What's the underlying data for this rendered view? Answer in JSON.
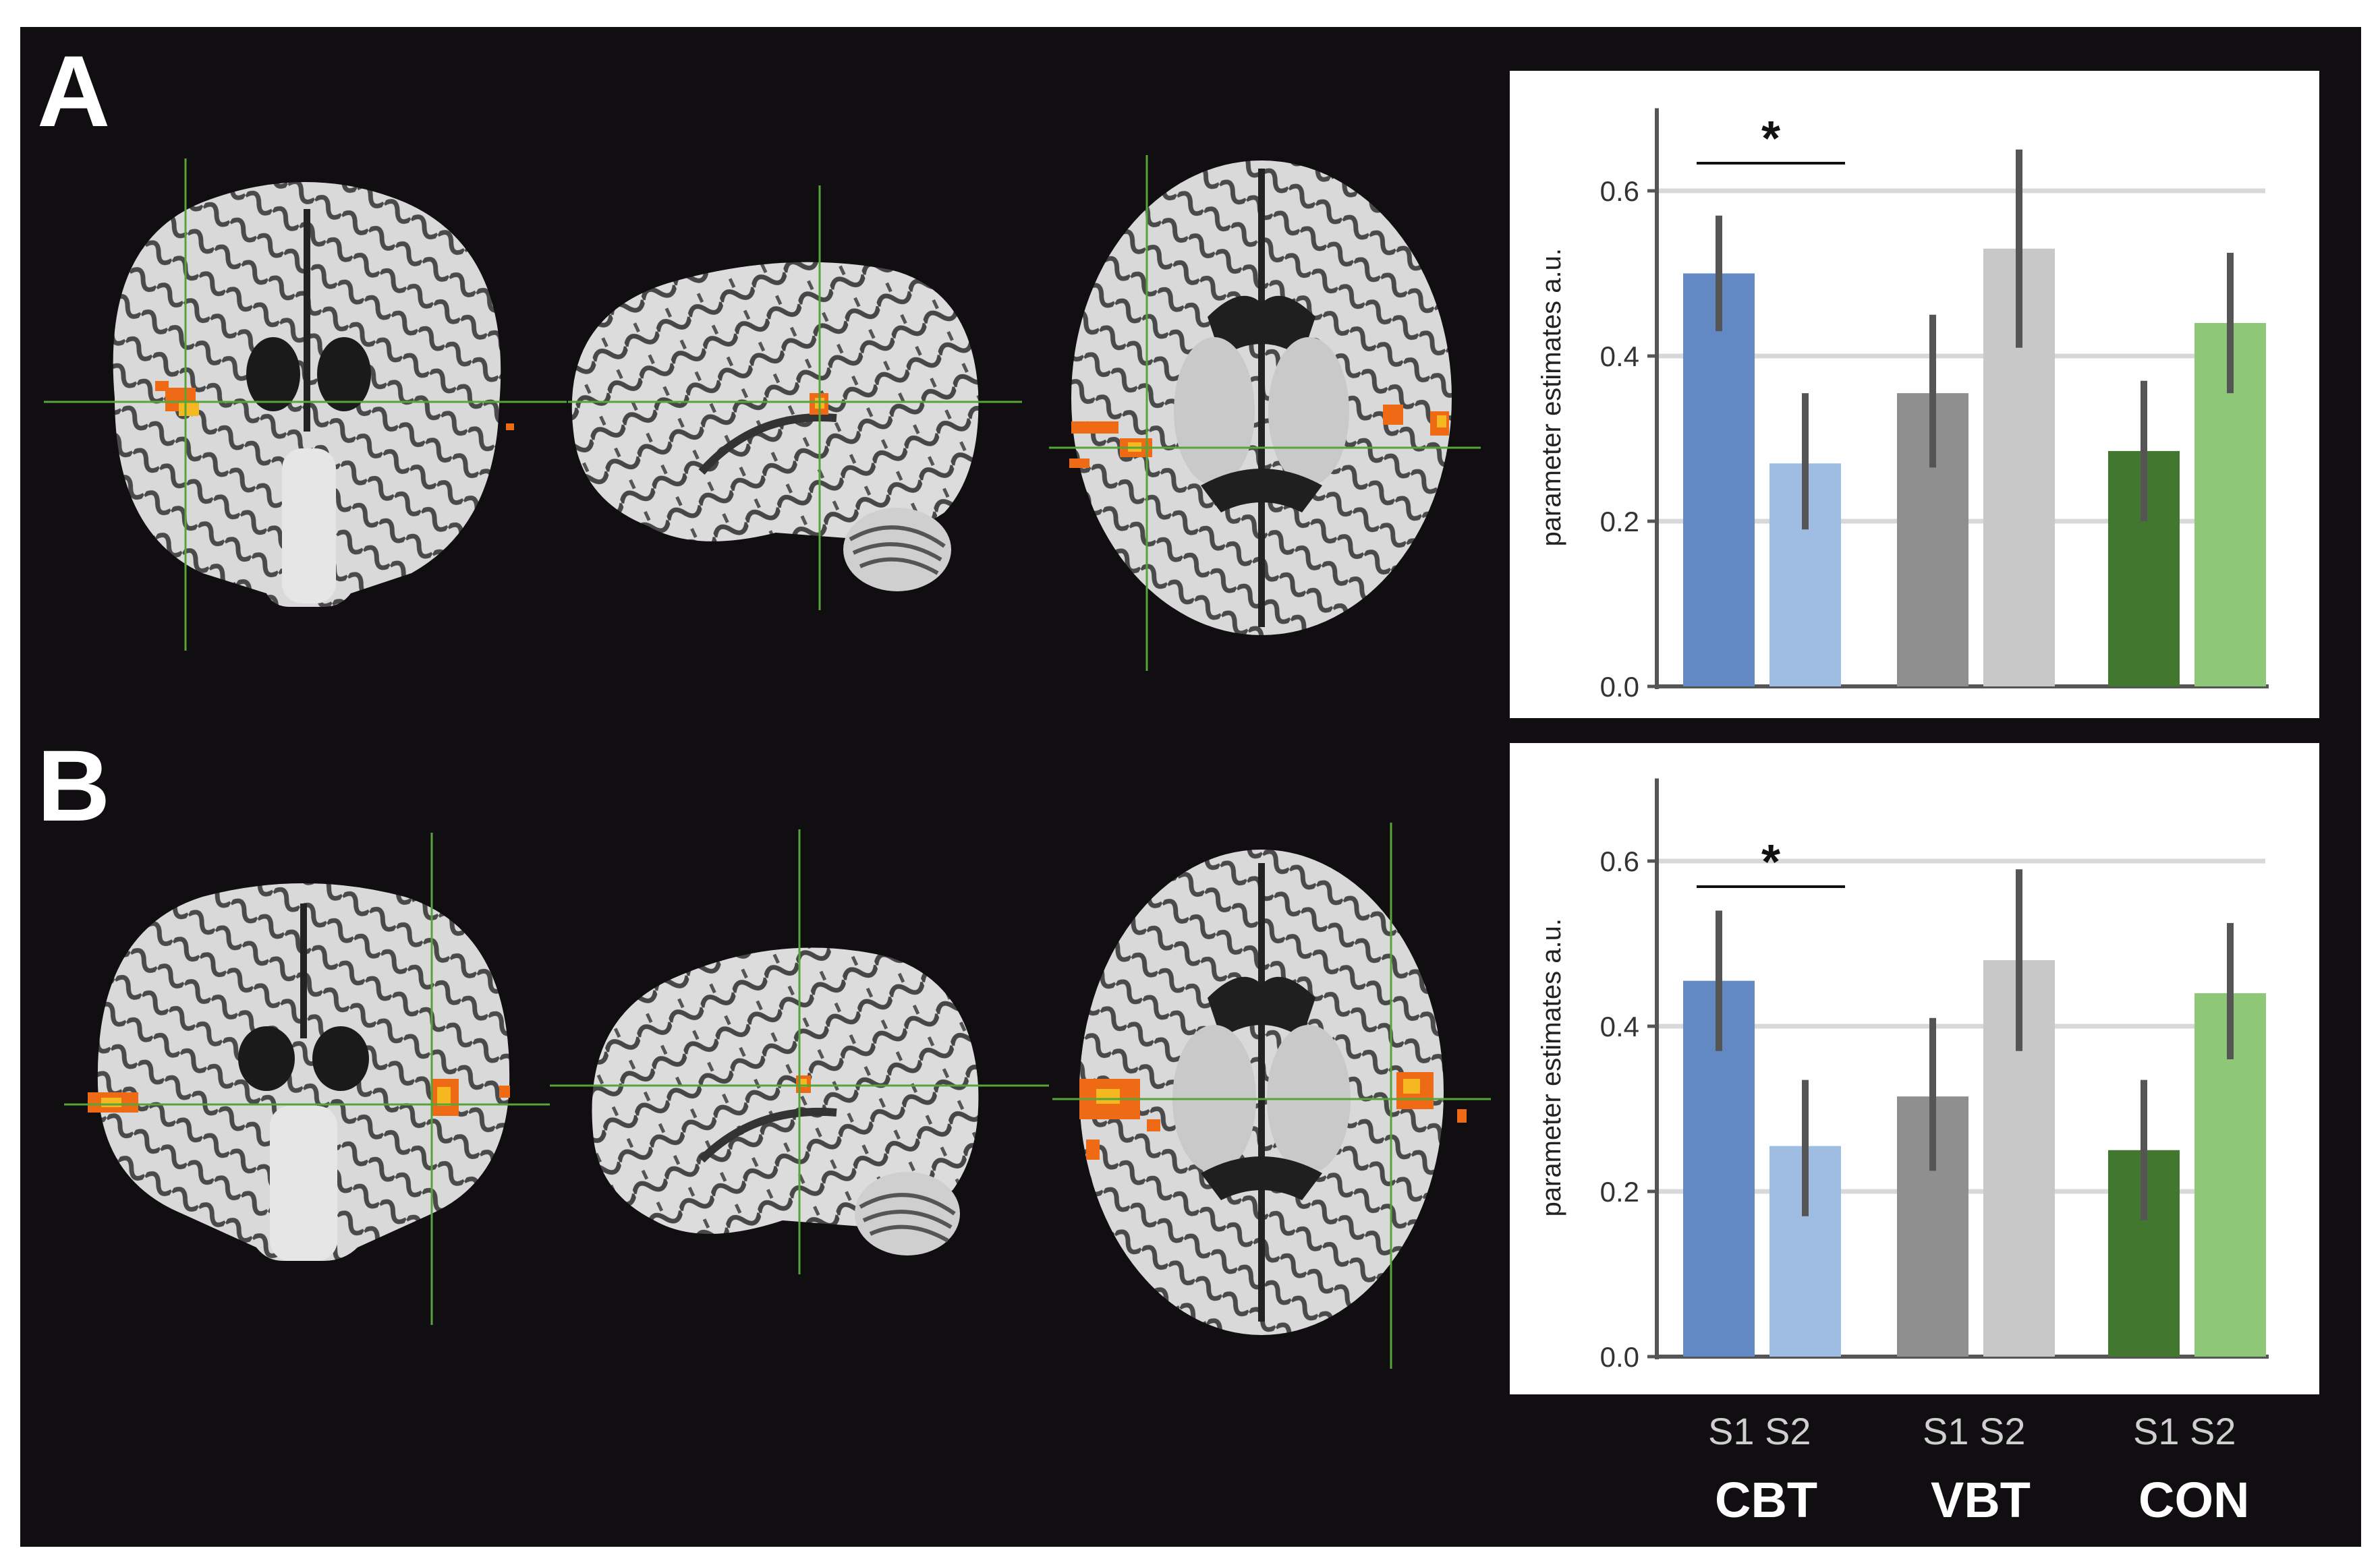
{
  "panels": [
    {
      "letter": "A"
    },
    {
      "letter": "B"
    }
  ],
  "session_labels": [
    "S1 S2",
    "S1 S2",
    "S1 S2"
  ],
  "groups": [
    "CBT",
    "VBT",
    "CON"
  ],
  "colors": {
    "background": "#100e10",
    "activation": "#ee6a14",
    "activation_peak": "#f6b820",
    "crosshair": "#56a43a",
    "cbt_s1": "#6289c4",
    "cbt_s2": "#9fbde3",
    "vbt_s1": "#8f8f8f",
    "vbt_s2": "#c8c8c8",
    "con_s1": "#41772e",
    "con_s2": "#8fc779"
  },
  "chart_data": [
    {
      "type": "bar",
      "panel": "A",
      "ylabel": "parameter estimates a.u.",
      "ylim": [
        0,
        0.7
      ],
      "yticks": [
        "0.0",
        "0.2",
        "0.4",
        "0.6"
      ],
      "categories": [
        "CBT S1",
        "CBT S2",
        "VBT S1",
        "VBT S2",
        "CON S1",
        "CON S2"
      ],
      "values": [
        0.5,
        0.27,
        0.355,
        0.53,
        0.285,
        0.44
      ],
      "error": [
        [
          0.43,
          0.57
        ],
        [
          0.19,
          0.355
        ],
        [
          0.265,
          0.45
        ],
        [
          0.41,
          0.65
        ],
        [
          0.2,
          0.37
        ],
        [
          0.355,
          0.525
        ]
      ],
      "significance": {
        "between": [
          0,
          1
        ],
        "label": "*"
      },
      "grid": true
    },
    {
      "type": "bar",
      "panel": "B",
      "ylabel": "parameter estimates a.u.",
      "ylim": [
        0,
        0.7
      ],
      "yticks": [
        "0.0",
        "0.2",
        "0.4",
        "0.6"
      ],
      "categories": [
        "CBT S1",
        "CBT S2",
        "VBT S1",
        "VBT S2",
        "CON S1",
        "CON S2"
      ],
      "values": [
        0.455,
        0.255,
        0.315,
        0.48,
        0.25,
        0.44
      ],
      "error": [
        [
          0.37,
          0.54
        ],
        [
          0.17,
          0.335
        ],
        [
          0.225,
          0.41
        ],
        [
          0.37,
          0.59
        ],
        [
          0.165,
          0.335
        ],
        [
          0.36,
          0.525
        ]
      ],
      "significance": {
        "between": [
          0,
          1
        ],
        "label": "*"
      },
      "grid": true
    }
  ]
}
